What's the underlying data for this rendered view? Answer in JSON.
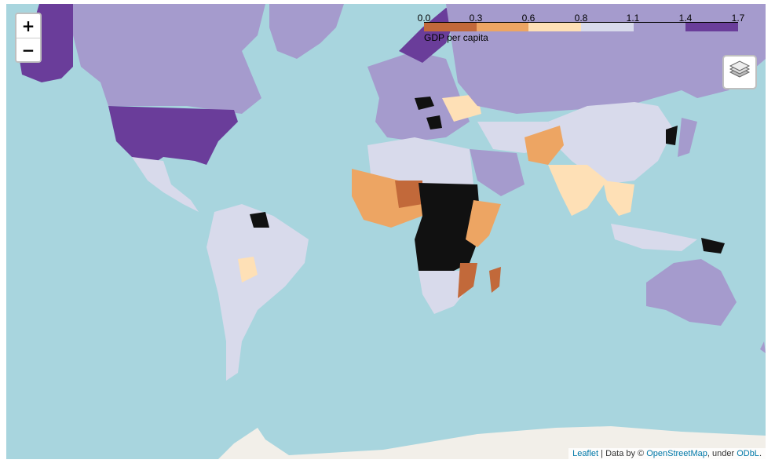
{
  "zoom": {
    "in_label": "+",
    "out_label": "−"
  },
  "legend": {
    "ticks": [
      "0.0",
      "0.3",
      "0.6",
      "0.8",
      "1.1",
      "1.4",
      "1.7"
    ],
    "caption": "GDP per capita",
    "colors": [
      "#c2693a",
      "#eda563",
      "#fee0b6",
      "#d8daeb",
      "#a59bcd",
      "#6a3d9a"
    ]
  },
  "attribution": {
    "leaflet": "Leaflet",
    "sep": " | Data by © ",
    "osm": "OpenStreetMap",
    "under": ", under ",
    "odbl": "ODbL",
    "end": "."
  },
  "colors": {
    "water": "#a8d5de",
    "land_high": "#a59bcd",
    "land_top": "#6a3d9a",
    "land_mid": "#d8daeb",
    "land_low": "#fee0b6",
    "land_lower": "#eda563",
    "land_lowest": "#c2693a",
    "no_data": "#111111",
    "ice": "#f2efe9"
  }
}
